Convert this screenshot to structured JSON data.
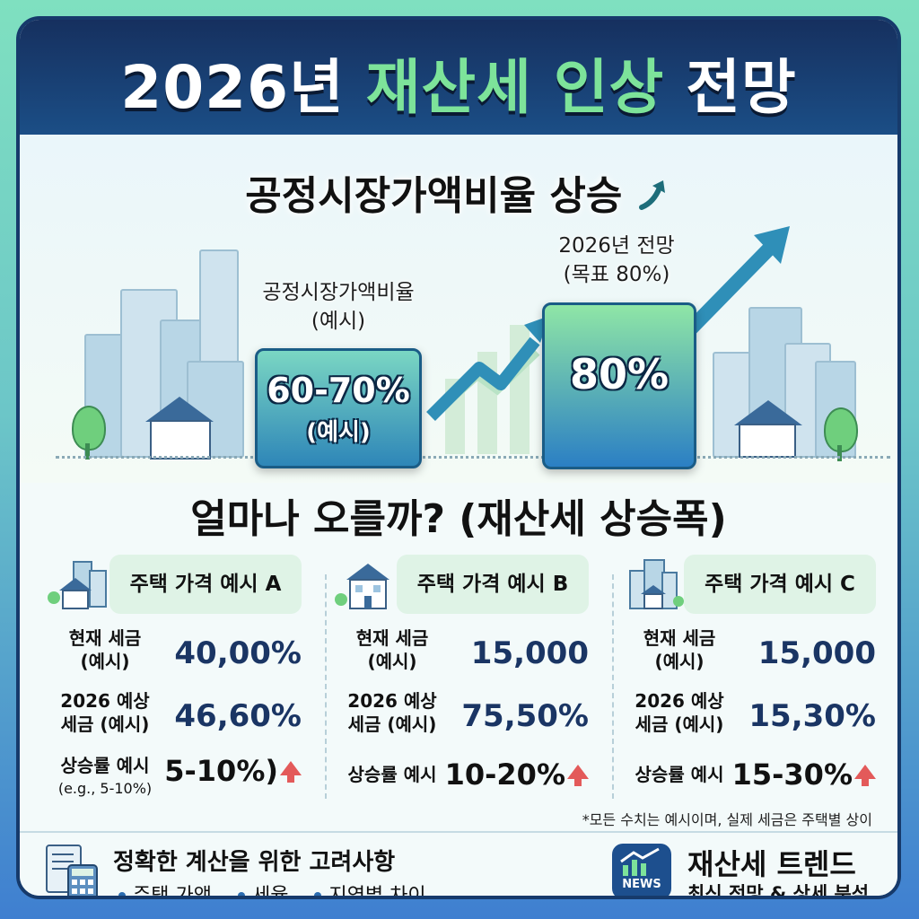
{
  "header": {
    "title_part1": "2026년 ",
    "title_highlight": "재산세 인상",
    "title_part2": " 전망"
  },
  "hero": {
    "subtitle": "공정시장가액비율 상승",
    "left_caption_line1": "공정시장가액비율",
    "left_caption_line2": "(예시)",
    "left_value": "60-70%",
    "left_value_sub": "(예시)",
    "right_caption_line1": "2026년 전망",
    "right_caption_line2": "(목표 80%)",
    "right_value": "80%"
  },
  "section_title": "얼마나 오를까? (재산세 상승폭)",
  "columns": [
    {
      "tag": "주택 가격 예시 A",
      "current_label_1": "현재 세금",
      "current_label_2": "(예시)",
      "current_value": "40,00%",
      "forecast_label_1": "2026 예상",
      "forecast_label_2": "세금 (예시)",
      "forecast_value": "46,60%",
      "rate_label": "상승률 예시",
      "rate_label_sub": "(e.g., 5-10%)",
      "rate_value": "5-10%)"
    },
    {
      "tag": "주택 가격 예시 B",
      "current_label_1": "현재 세금",
      "current_label_2": "(예시)",
      "current_value": "15,000",
      "forecast_label_1": "2026 예상",
      "forecast_label_2": "세금 (예시)",
      "forecast_value": "75,50%",
      "rate_label": "상승률 예시",
      "rate_value": "10-20%"
    },
    {
      "tag": "주택 가격 예시 C",
      "current_label_1": "현재 세금",
      "current_label_2": "(예시)",
      "current_value": "15,000",
      "forecast_label_1": "2026 예상",
      "forecast_label_2": "세금 (예시)",
      "forecast_value": "15,30%",
      "rate_label": "상승률 예시",
      "rate_value": "15-30%"
    }
  ],
  "disclaimer": "*모든 수치는 예시이며, 실제 세금은 주택별 상이",
  "footer": {
    "title": "정확한 계산을 위한 고려사항",
    "items": [
      "주택 가액",
      "세율",
      "지역별 차이"
    ],
    "news_badge": "NEWS",
    "trend_title": "재산세 트렌드",
    "trend_subtitle": "최신 전망 & 상세 분석"
  },
  "colors": {
    "accent_green": "#7de39a",
    "navy": "#16305f",
    "arrow_blue": "#2f8fb8",
    "up_red": "#e35a5a"
  }
}
